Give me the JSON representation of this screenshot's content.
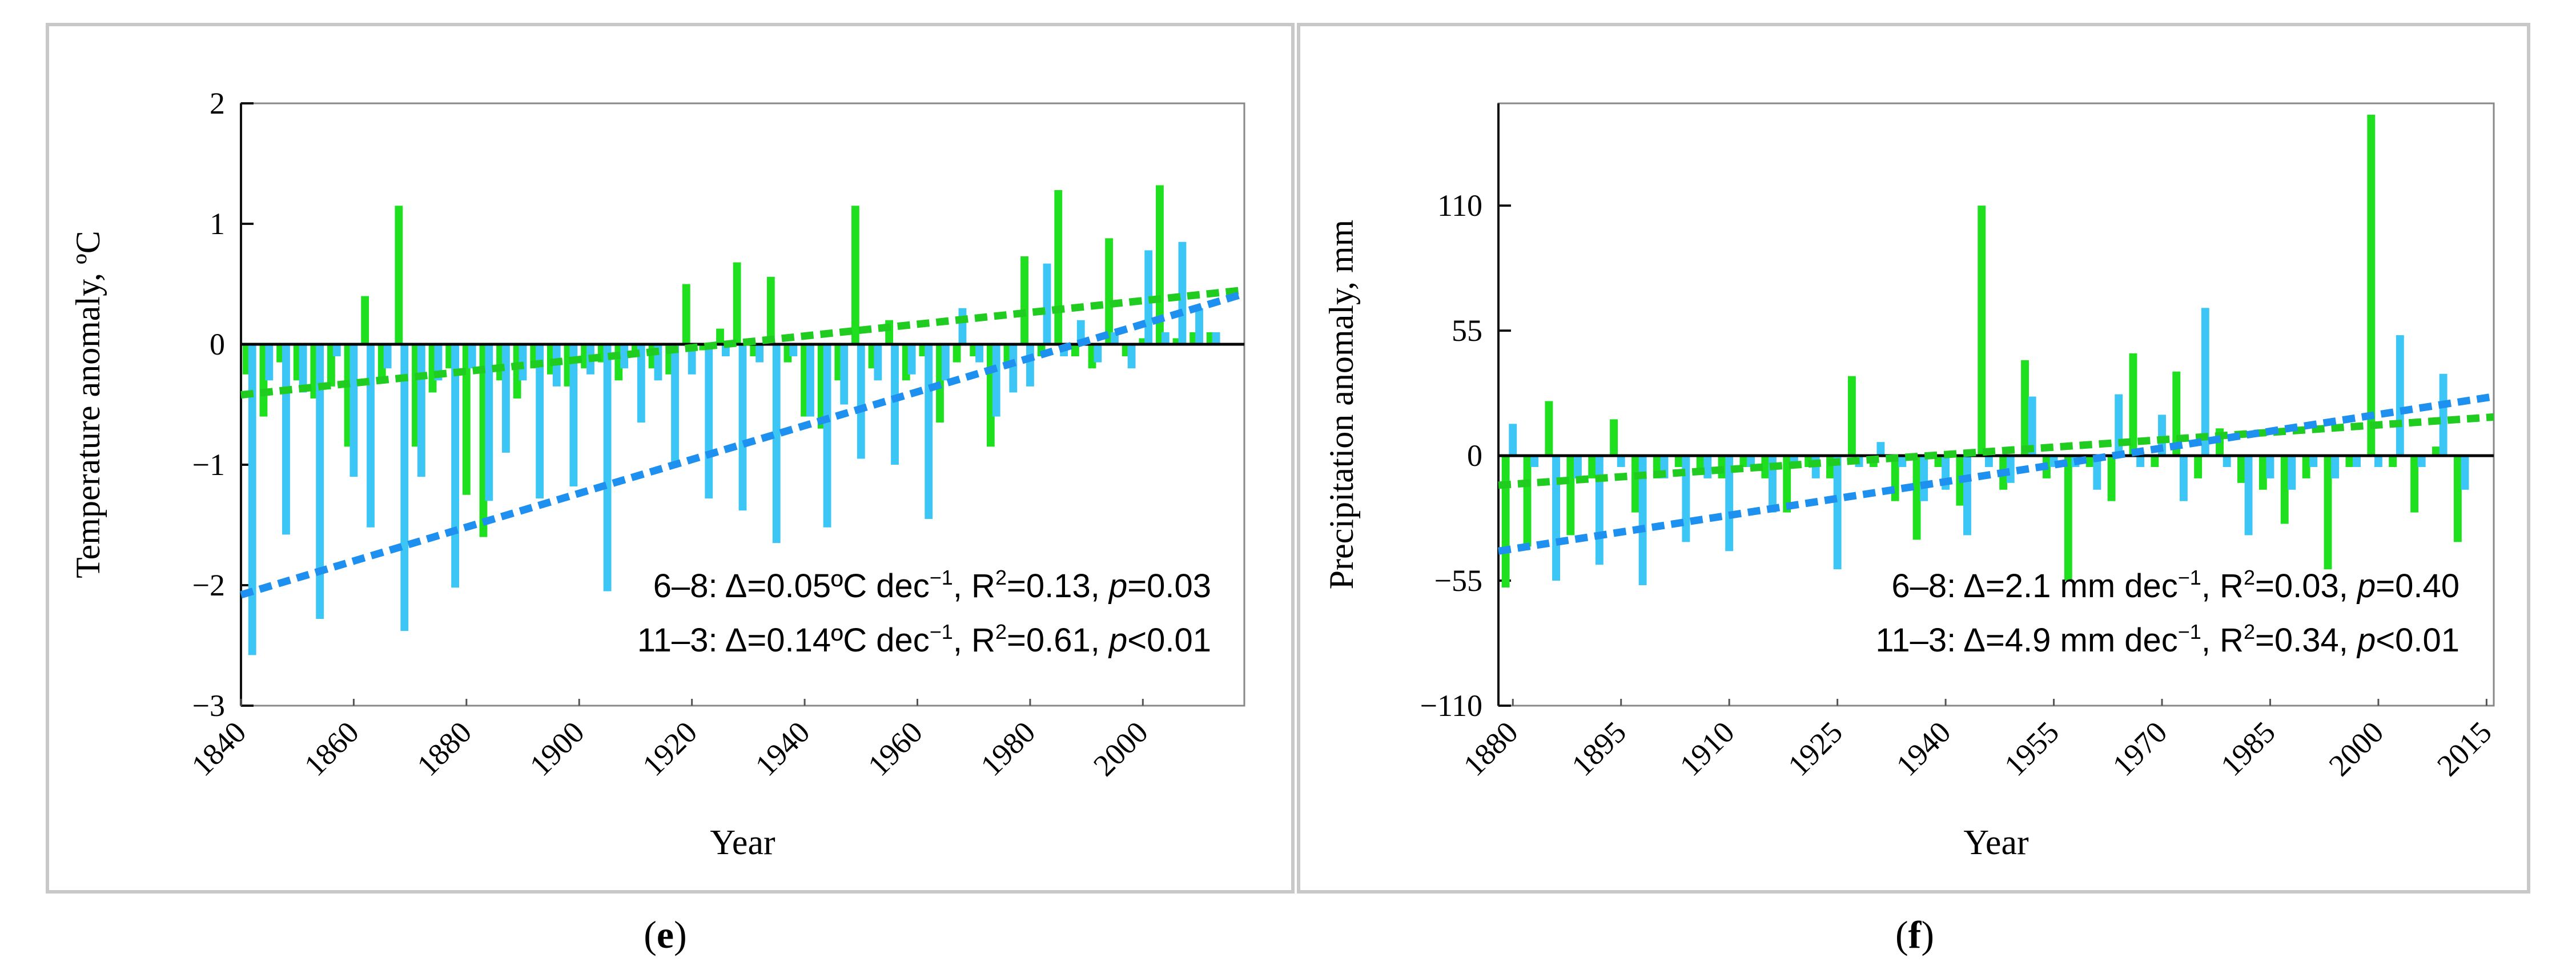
{
  "chart_data": [
    {
      "type": "bar",
      "panel_id": "e",
      "panel_label": "e",
      "xlabel": "Year",
      "ylabel": "Temperature anomaly, ºC",
      "xlim": [
        1840,
        2018
      ],
      "ylim": [
        -3,
        2
      ],
      "xticks": [
        1840,
        1860,
        1880,
        1900,
        1920,
        1940,
        1960,
        1980,
        2000
      ],
      "yticks": [
        -3,
        -2,
        -1,
        0,
        1,
        2
      ],
      "bar_width_years": 1.4,
      "series": [
        {
          "name": "6–8",
          "color": "#1fe01f",
          "x": [
            1841,
            1844,
            1847,
            1850,
            1853,
            1856,
            1859,
            1862,
            1865,
            1868,
            1871,
            1874,
            1877,
            1880,
            1883,
            1886,
            1889,
            1892,
            1895,
            1898,
            1901,
            1904,
            1907,
            1910,
            1913,
            1916,
            1919,
            1922,
            1925,
            1928,
            1931,
            1934,
            1937,
            1940,
            1943,
            1946,
            1949,
            1952,
            1955,
            1958,
            1961,
            1964,
            1967,
            1970,
            1973,
            1976,
            1979,
            1982,
            1985,
            1988,
            1991,
            1994,
            1997,
            2000,
            2003,
            2006,
            2009,
            2012
          ],
          "values": [
            -0.25,
            -0.6,
            -0.15,
            -0.3,
            -0.45,
            -0.35,
            -0.85,
            0.4,
            -0.3,
            1.15,
            -0.85,
            -0.4,
            -0.2,
            -1.25,
            -1.6,
            -0.3,
            -0.45,
            -0.2,
            -0.25,
            -0.35,
            -0.2,
            -0.15,
            -0.3,
            -0.1,
            -0.2,
            -0.25,
            0.5,
            -0.05,
            0.13,
            0.68,
            -0.1,
            0.56,
            -0.15,
            -0.6,
            -0.7,
            -0.3,
            1.15,
            -0.2,
            0.2,
            -0.3,
            -0.1,
            -0.65,
            -0.15,
            -0.1,
            -0.85,
            -0.2,
            0.73,
            -0.1,
            1.28,
            -0.1,
            -0.2,
            0.88,
            -0.1,
            0.05,
            1.32,
            0.05,
            0.1,
            0.1
          ]
        },
        {
          "name": "11–3",
          "color": "#3cc6f5",
          "x": [
            1842,
            1845,
            1848,
            1851,
            1854,
            1857,
            1860,
            1863,
            1866,
            1869,
            1872,
            1875,
            1878,
            1881,
            1884,
            1887,
            1890,
            1893,
            1896,
            1899,
            1902,
            1905,
            1908,
            1911,
            1914,
            1917,
            1920,
            1923,
            1926,
            1929,
            1932,
            1935,
            1938,
            1941,
            1944,
            1947,
            1950,
            1953,
            1956,
            1959,
            1962,
            1965,
            1968,
            1971,
            1974,
            1977,
            1980,
            1983,
            1986,
            1989,
            1992,
            1995,
            1998,
            2001,
            2004,
            2007,
            2010,
            2013
          ],
          "values": [
            -2.58,
            -0.3,
            -1.58,
            -0.4,
            -2.28,
            -0.1,
            -1.1,
            -1.52,
            -0.2,
            -2.38,
            -1.1,
            -0.3,
            -2.02,
            -0.2,
            -1.3,
            -0.9,
            -0.3,
            -1.28,
            -0.35,
            -1.18,
            -0.25,
            -2.05,
            -0.2,
            -0.65,
            -0.3,
            -1.0,
            -0.25,
            -1.28,
            -0.1,
            -1.38,
            -0.15,
            -1.65,
            -0.1,
            -0.6,
            -1.52,
            -0.5,
            -0.95,
            -0.3,
            -1.0,
            -0.25,
            -1.45,
            -0.3,
            0.3,
            -0.15,
            -0.6,
            -0.4,
            -0.35,
            0.67,
            -0.1,
            0.2,
            -0.15,
            0.1,
            -0.2,
            0.78,
            0.1,
            0.85,
            0.3,
            0.1
          ]
        }
      ],
      "trend_lines": [
        {
          "name": "6–8",
          "color": "#1fcc1f",
          "x": [
            1840,
            2018
          ],
          "y": [
            -0.42,
            0.45
          ]
        },
        {
          "name": "11–3",
          "color": "#1e90f0",
          "x": [
            1840,
            2018
          ],
          "y": [
            -2.08,
            0.42
          ]
        }
      ],
      "annotations": [
        {
          "parts": [
            [
              "t",
              "6–8: Δ=0.05ºC dec"
            ],
            [
              "sup",
              "−1"
            ],
            [
              "t",
              ", R"
            ],
            [
              "sup",
              "2"
            ],
            [
              "t",
              "=0.13, "
            ],
            [
              "i",
              "p"
            ],
            [
              "t",
              "=0.03"
            ]
          ]
        },
        {
          "parts": [
            [
              "t",
              "11–3: Δ=0.14ºC dec"
            ],
            [
              "sup",
              "−1"
            ],
            [
              "t",
              ", R"
            ],
            [
              "sup",
              "2"
            ],
            [
              "t",
              "=0.61, "
            ],
            [
              "i",
              "p"
            ],
            [
              "t",
              "<0.01"
            ]
          ]
        }
      ]
    },
    {
      "type": "bar",
      "panel_id": "f",
      "panel_label": "f",
      "xlabel": "Year",
      "ylabel": "Precipitation anomaly, mm",
      "xlim": [
        1878,
        2016
      ],
      "ylim": [
        -110,
        155
      ],
      "xticks": [
        1880,
        1895,
        1910,
        1925,
        1940,
        1955,
        1970,
        1985,
        2000,
        2015
      ],
      "yticks": [
        -110,
        -55,
        0,
        55,
        110
      ],
      "bar_width_years": 1.1,
      "series": [
        {
          "name": "6–8",
          "color": "#1fe01f",
          "x": [
            1879,
            1882,
            1885,
            1888,
            1891,
            1894,
            1897,
            1900,
            1903,
            1906,
            1909,
            1912,
            1915,
            1918,
            1921,
            1924,
            1927,
            1930,
            1933,
            1936,
            1939,
            1942,
            1945,
            1948,
            1951,
            1954,
            1957,
            1960,
            1963,
            1966,
            1969,
            1972,
            1975,
            1978,
            1981,
            1984,
            1987,
            1990,
            1993,
            1996,
            1999,
            2002,
            2005,
            2008,
            2011
          ],
          "values": [
            -58,
            -40,
            24,
            -35,
            -10,
            16,
            -25,
            -10,
            -5,
            -8,
            -10,
            -5,
            -10,
            -25,
            -5,
            -10,
            35,
            -5,
            -20,
            -37,
            -5,
            -22,
            110,
            -15,
            42,
            -10,
            -55,
            -5,
            -20,
            45,
            -5,
            37,
            -10,
            12,
            -12,
            -15,
            -30,
            -10,
            -50,
            -5,
            150,
            -5,
            -25,
            4,
            -38
          ]
        },
        {
          "name": "11–3",
          "color": "#3cc6f5",
          "x": [
            1880,
            1883,
            1886,
            1889,
            1892,
            1895,
            1898,
            1901,
            1904,
            1907,
            1910,
            1913,
            1916,
            1919,
            1922,
            1925,
            1928,
            1931,
            1934,
            1937,
            1940,
            1943,
            1946,
            1949,
            1952,
            1955,
            1958,
            1961,
            1964,
            1967,
            1970,
            1973,
            1976,
            1979,
            1982,
            1985,
            1988,
            1991,
            1994,
            1997,
            2000,
            2003,
            2006,
            2009,
            2012
          ],
          "values": [
            14,
            -5,
            -55,
            -10,
            -48,
            -5,
            -57,
            -10,
            -38,
            -10,
            -42,
            -5,
            -25,
            -5,
            -10,
            -50,
            -5,
            6,
            -5,
            -20,
            -15,
            -35,
            -5,
            -12,
            26,
            -5,
            -5,
            -15,
            27,
            -5,
            18,
            -20,
            65,
            -5,
            -35,
            -10,
            -15,
            -5,
            -10,
            -5,
            -5,
            53,
            -5,
            36,
            -15
          ]
        }
      ],
      "trend_lines": [
        {
          "name": "6–8",
          "color": "#1fcc1f",
          "x": [
            1878,
            2016
          ],
          "y": [
            -13,
            17
          ]
        },
        {
          "name": "11–3",
          "color": "#1e90f0",
          "x": [
            1878,
            2016
          ],
          "y": [
            -42,
            26
          ]
        }
      ],
      "annotations": [
        {
          "parts": [
            [
              "t",
              "6–8: Δ=2.1 mm dec"
            ],
            [
              "sup",
              "−1"
            ],
            [
              "t",
              ", R"
            ],
            [
              "sup",
              "2"
            ],
            [
              "t",
              "=0.03, "
            ],
            [
              "i",
              "p"
            ],
            [
              "t",
              "=0.40"
            ]
          ]
        },
        {
          "parts": [
            [
              "t",
              "11–3: Δ=4.9 mm dec"
            ],
            [
              "sup",
              "−1"
            ],
            [
              "t",
              ", R"
            ],
            [
              "sup",
              "2"
            ],
            [
              "t",
              "=0.34, "
            ],
            [
              "i",
              "p"
            ],
            [
              "t",
              "<0.01"
            ]
          ]
        }
      ]
    }
  ]
}
